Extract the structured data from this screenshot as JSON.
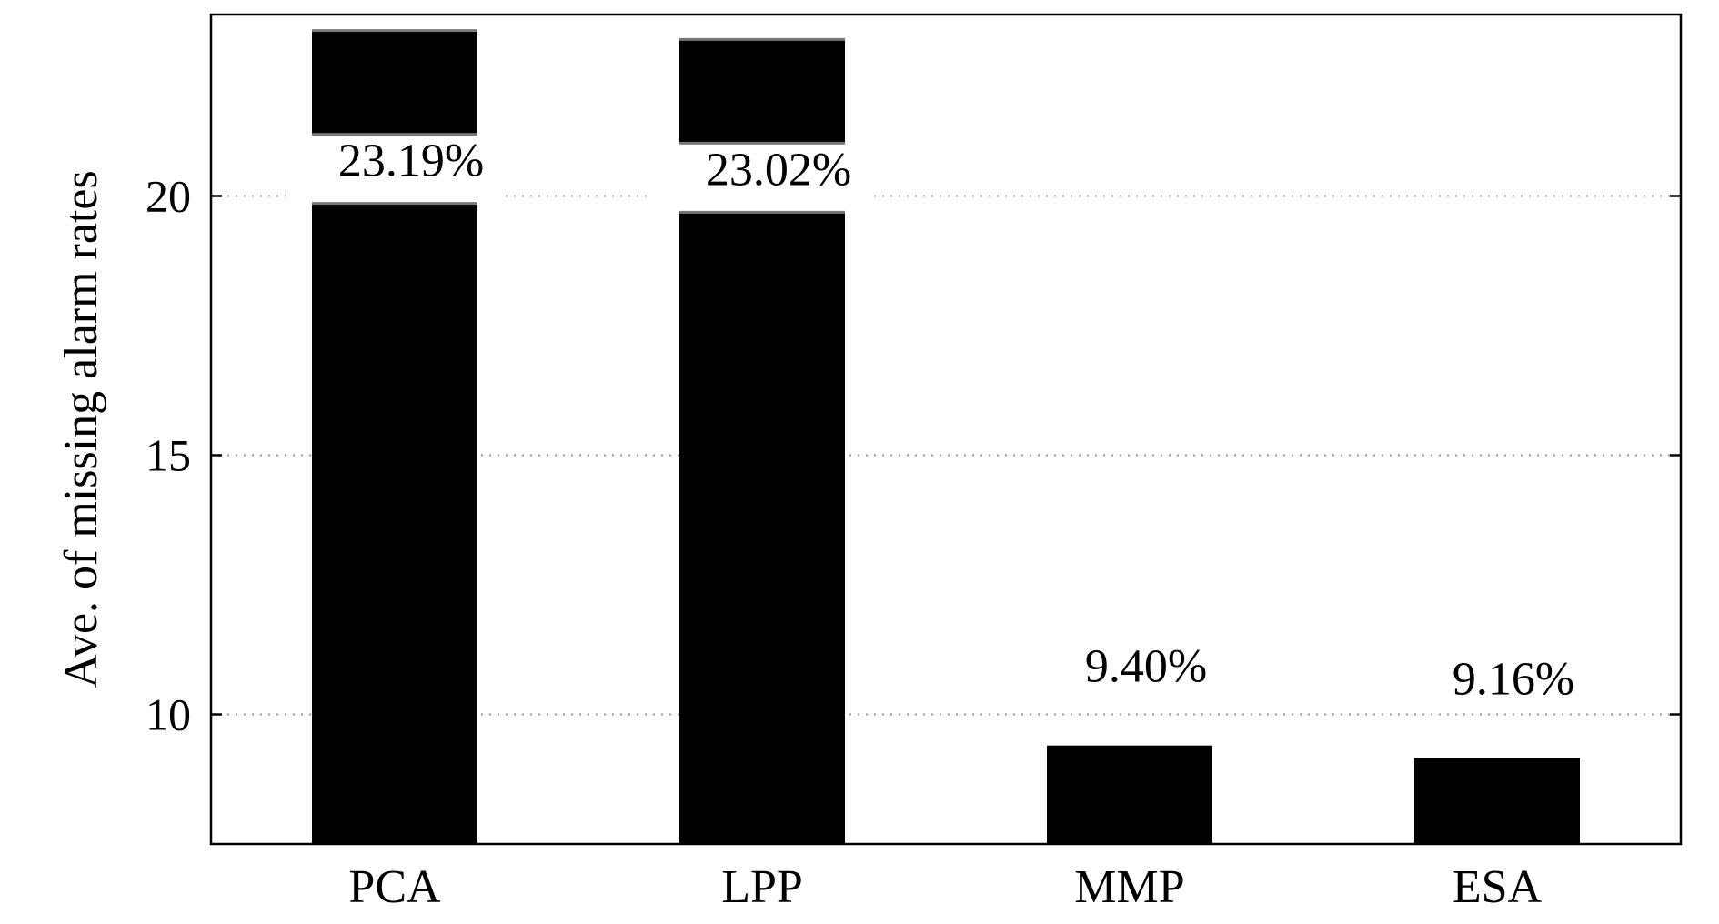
{
  "chart_data": {
    "type": "bar",
    "title": "",
    "xlabel": "",
    "ylabel": "Ave. of missing alarm rates",
    "categories": [
      "PCA",
      "LPP",
      "MMP",
      "ESA"
    ],
    "values": [
      23.19,
      23.02,
      9.4,
      9.16
    ],
    "data_labels": [
      "23.19%",
      "23.02%",
      "9.40%",
      "9.16%"
    ],
    "ylim": [
      7.5,
      23.5
    ],
    "yticks": [
      10,
      15,
      20
    ],
    "ytick_labels": [
      "10",
      "15",
      "20"
    ],
    "grid": "horizontal dotted",
    "legend": "none",
    "colors": {
      "bar": "#000000",
      "grid": "#9a9a9a",
      "axis": "#000000"
    }
  }
}
